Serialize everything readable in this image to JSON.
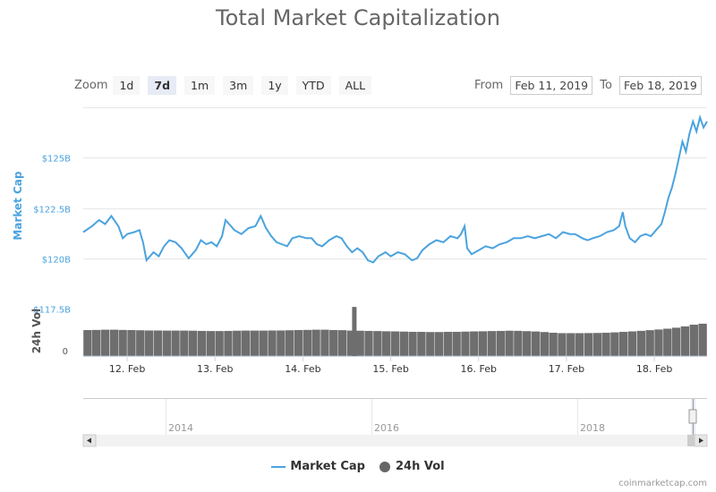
{
  "title": "Total Market Capitalization",
  "zoom": {
    "label": "Zoom",
    "buttons": [
      "1d",
      "7d",
      "1m",
      "3m",
      "1y",
      "YTD",
      "ALL"
    ],
    "selected": "7d"
  },
  "range": {
    "from_label": "From",
    "from_value": "Feb 11, 2019",
    "to_label": "To",
    "to_value": "Feb 18, 2019"
  },
  "legend": {
    "market_cap": "Market Cap",
    "volume": "24h Vol"
  },
  "credit": "coinmarketcap.com",
  "colors": {
    "market_cap": "#4aa3df",
    "volume": "#6e6e6e",
    "selected_button": "#e6ebf5"
  },
  "chart_data": {
    "type": "line",
    "x_ticks": [
      "12. Feb",
      "13. Feb",
      "14. Feb",
      "15. Feb",
      "16. Feb",
      "17. Feb",
      "18. Feb"
    ],
    "market_cap": {
      "ylabel": "Market Cap",
      "y_ticks": [
        "$117.5B",
        "$120B",
        "$122.5B",
        "$125B"
      ],
      "y_tick_values": [
        117.5,
        120,
        122.5,
        125
      ],
      "ylim": [
        117.5,
        127.5
      ],
      "unit": "billion USD",
      "points": [
        [
          11.5,
          121.3
        ],
        [
          11.6,
          121.6
        ],
        [
          11.68,
          121.9
        ],
        [
          11.75,
          121.7
        ],
        [
          11.82,
          122.1
        ],
        [
          11.9,
          121.6
        ],
        [
          11.95,
          121.0
        ],
        [
          12.0,
          121.2
        ],
        [
          12.08,
          121.3
        ],
        [
          12.14,
          121.4
        ],
        [
          12.18,
          120.8
        ],
        [
          12.22,
          119.9
        ],
        [
          12.3,
          120.3
        ],
        [
          12.36,
          120.1
        ],
        [
          12.42,
          120.6
        ],
        [
          12.48,
          120.9
        ],
        [
          12.55,
          120.8
        ],
        [
          12.62,
          120.5
        ],
        [
          12.7,
          120.0
        ],
        [
          12.78,
          120.4
        ],
        [
          12.84,
          120.9
        ],
        [
          12.9,
          120.7
        ],
        [
          12.96,
          120.8
        ],
        [
          13.02,
          120.6
        ],
        [
          13.08,
          121.1
        ],
        [
          13.12,
          121.9
        ],
        [
          13.16,
          121.7
        ],
        [
          13.22,
          121.4
        ],
        [
          13.3,
          121.2
        ],
        [
          13.38,
          121.5
        ],
        [
          13.46,
          121.6
        ],
        [
          13.52,
          122.1
        ],
        [
          13.58,
          121.5
        ],
        [
          13.64,
          121.1
        ],
        [
          13.7,
          120.8
        ],
        [
          13.76,
          120.7
        ],
        [
          13.82,
          120.6
        ],
        [
          13.88,
          121.0
        ],
        [
          13.96,
          121.1
        ],
        [
          14.04,
          121.0
        ],
        [
          14.1,
          121.0
        ],
        [
          14.16,
          120.7
        ],
        [
          14.22,
          120.6
        ],
        [
          14.3,
          120.9
        ],
        [
          14.38,
          121.1
        ],
        [
          14.44,
          121.0
        ],
        [
          14.5,
          120.6
        ],
        [
          14.56,
          120.3
        ],
        [
          14.62,
          120.5
        ],
        [
          14.68,
          120.3
        ],
        [
          14.74,
          119.9
        ],
        [
          14.8,
          119.8
        ],
        [
          14.86,
          120.1
        ],
        [
          14.94,
          120.3
        ],
        [
          15.0,
          120.1
        ],
        [
          15.08,
          120.3
        ],
        [
          15.16,
          120.2
        ],
        [
          15.24,
          119.9
        ],
        [
          15.3,
          120.0
        ],
        [
          15.36,
          120.4
        ],
        [
          15.44,
          120.7
        ],
        [
          15.52,
          120.9
        ],
        [
          15.6,
          120.8
        ],
        [
          15.68,
          121.1
        ],
        [
          15.76,
          121.0
        ],
        [
          15.8,
          121.2
        ],
        [
          15.84,
          121.6
        ],
        [
          15.87,
          120.5
        ],
        [
          15.92,
          120.2
        ],
        [
          16.0,
          120.4
        ],
        [
          16.08,
          120.6
        ],
        [
          16.16,
          120.5
        ],
        [
          16.24,
          120.7
        ],
        [
          16.32,
          120.8
        ],
        [
          16.4,
          121.0
        ],
        [
          16.48,
          121.0
        ],
        [
          16.56,
          121.1
        ],
        [
          16.64,
          121.0
        ],
        [
          16.72,
          121.1
        ],
        [
          16.8,
          121.2
        ],
        [
          16.88,
          121.0
        ],
        [
          16.96,
          121.3
        ],
        [
          17.04,
          121.2
        ],
        [
          17.1,
          121.2
        ],
        [
          17.18,
          121.0
        ],
        [
          17.24,
          120.9
        ],
        [
          17.3,
          121.0
        ],
        [
          17.38,
          121.1
        ],
        [
          17.46,
          121.3
        ],
        [
          17.54,
          121.4
        ],
        [
          17.6,
          121.6
        ],
        [
          17.64,
          122.3
        ],
        [
          17.67,
          121.6
        ],
        [
          17.72,
          121.0
        ],
        [
          17.78,
          120.8
        ],
        [
          17.84,
          121.1
        ],
        [
          17.9,
          121.2
        ],
        [
          17.96,
          121.1
        ],
        [
          18.02,
          121.4
        ],
        [
          18.08,
          121.7
        ],
        [
          18.12,
          122.3
        ],
        [
          18.16,
          123.0
        ],
        [
          18.2,
          123.5
        ],
        [
          18.24,
          124.2
        ],
        [
          18.28,
          125.0
        ],
        [
          18.32,
          125.8
        ],
        [
          18.36,
          125.3
        ],
        [
          18.4,
          126.2
        ],
        [
          18.44,
          126.8
        ],
        [
          18.48,
          126.3
        ],
        [
          18.52,
          127.0
        ],
        [
          18.56,
          126.5
        ],
        [
          18.6,
          126.8
        ]
      ]
    },
    "volume": {
      "ylabel": "24h Vol",
      "y_ticks": [
        "0"
      ],
      "ylim": [
        0,
        1
      ],
      "points": [
        [
          11.5,
          0.52
        ],
        [
          11.8,
          0.53
        ],
        [
          12.1,
          0.52
        ],
        [
          12.4,
          0.51
        ],
        [
          12.7,
          0.51
        ],
        [
          13.0,
          0.5
        ],
        [
          13.3,
          0.51
        ],
        [
          13.6,
          0.51
        ],
        [
          13.9,
          0.52
        ],
        [
          14.2,
          0.53
        ],
        [
          14.45,
          0.52
        ],
        [
          14.55,
          0.51
        ],
        [
          14.58,
          0.98
        ],
        [
          14.62,
          0.51
        ],
        [
          14.9,
          0.5
        ],
        [
          15.2,
          0.49
        ],
        [
          15.5,
          0.48
        ],
        [
          15.8,
          0.49
        ],
        [
          16.1,
          0.5
        ],
        [
          16.4,
          0.51
        ],
        [
          16.7,
          0.49
        ],
        [
          16.9,
          0.46
        ],
        [
          17.2,
          0.46
        ],
        [
          17.5,
          0.47
        ],
        [
          17.8,
          0.5
        ],
        [
          18.1,
          0.54
        ],
        [
          18.3,
          0.58
        ],
        [
          18.45,
          0.63
        ],
        [
          18.6,
          0.66
        ]
      ]
    },
    "navigator": {
      "ticks": [
        "2014",
        "2016",
        "2018"
      ]
    }
  }
}
